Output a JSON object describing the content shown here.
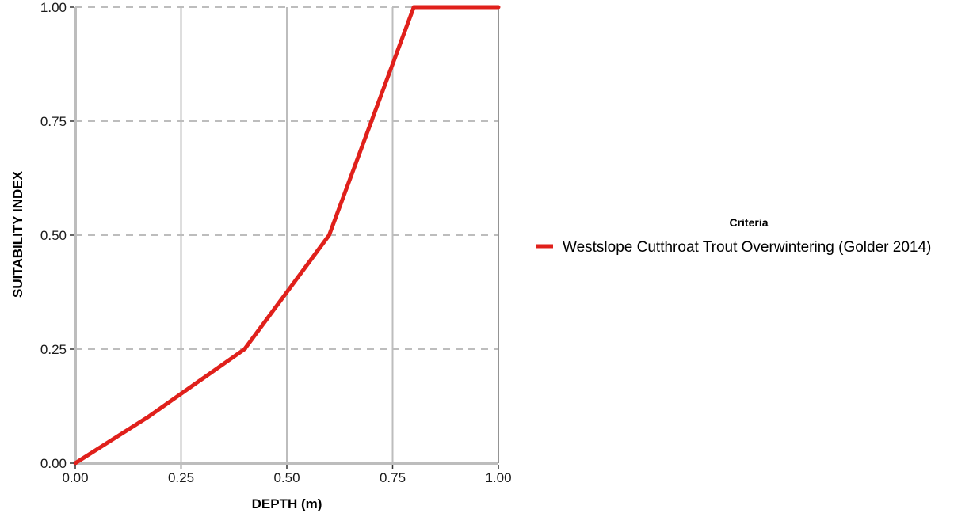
{
  "chart_data": {
    "type": "line",
    "xlabel": "DEPTH (m)",
    "ylabel": "SUITABILITY INDEX",
    "xlim": [
      0,
      1
    ],
    "ylim": [
      0,
      1
    ],
    "x_ticks": [
      "0.00",
      "0.25",
      "0.50",
      "0.75",
      "1.00"
    ],
    "y_ticks": [
      "0.00",
      "0.25",
      "0.50",
      "0.75",
      "1.00"
    ],
    "grid": {
      "x": "solid",
      "y": "dashed"
    },
    "legend": {
      "title": "Criteria",
      "position": "right"
    },
    "series": [
      {
        "name": "Westslope Cutthroat Trout Overwintering (Golder 2014)",
        "color": "#e0201b",
        "x": [
          0.0,
          0.17,
          0.4,
          0.6,
          0.8,
          1.0
        ],
        "y": [
          0.0,
          0.1,
          0.25,
          0.5,
          1.0,
          1.0
        ]
      }
    ]
  }
}
